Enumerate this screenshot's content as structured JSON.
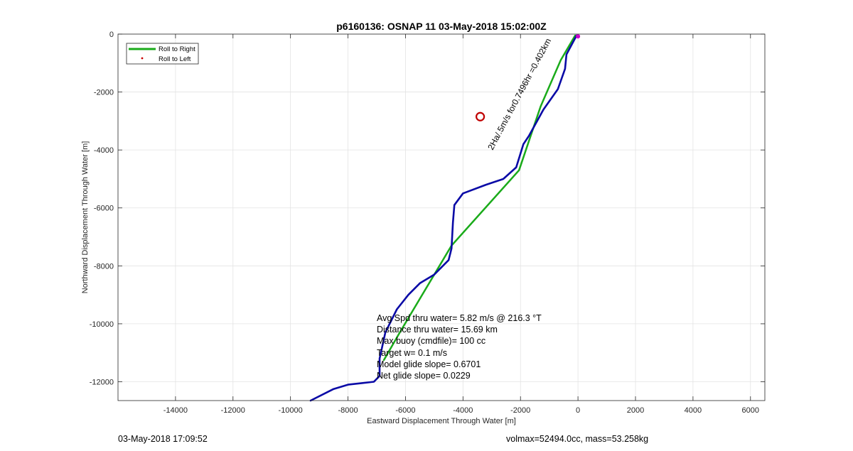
{
  "chart_data": {
    "type": "line",
    "title": "p6160136: OSNAP 11 03-May-2018 15:02:00Z",
    "xlabel": "Eastward Displacement Through Water [m]",
    "ylabel": "Northward Displacement Through Water [m]",
    "xlim": [
      -16000,
      6500
    ],
    "ylim": [
      -12650,
      0
    ],
    "xticks": [
      -14000,
      -12000,
      -10000,
      -8000,
      -6000,
      -4000,
      -2000,
      0,
      2000,
      4000,
      6000
    ],
    "yticks": [
      0,
      -2000,
      -4000,
      -6000,
      -8000,
      -10000,
      -12000
    ],
    "grid": true,
    "legend_position": "top-left",
    "series": [
      {
        "name": "Roll to Right",
        "color": "#1aab1a",
        "points": [
          [
            -100,
            -50
          ],
          [
            -600,
            -900
          ],
          [
            -1300,
            -2500
          ],
          [
            -2050,
            -4700
          ],
          [
            -4400,
            -7300
          ],
          [
            -6200,
            -10300
          ],
          [
            -6750,
            -11250
          ]
        ]
      },
      {
        "name": "Roll to Left",
        "color": "#cc0000",
        "points": []
      },
      {
        "name": "",
        "color": "#0a0aa6",
        "points": [
          [
            -50,
            -50
          ],
          [
            -400,
            -700
          ],
          [
            -450,
            -1200
          ],
          [
            -700,
            -1900
          ],
          [
            -1200,
            -2600
          ],
          [
            -1700,
            -3500
          ],
          [
            -1900,
            -3800
          ],
          [
            -2150,
            -4600
          ],
          [
            -2600,
            -5000
          ],
          [
            -3200,
            -5200
          ],
          [
            -4000,
            -5500
          ],
          [
            -4300,
            -5900
          ],
          [
            -4350,
            -6500
          ],
          [
            -4400,
            -7400
          ],
          [
            -4500,
            -7800
          ],
          [
            -5000,
            -8300
          ],
          [
            -5500,
            -8600
          ],
          [
            -5900,
            -9000
          ],
          [
            -6300,
            -9500
          ],
          [
            -6700,
            -10300
          ],
          [
            -6900,
            -11200
          ],
          [
            -6900,
            -11800
          ],
          [
            -7100,
            -12000
          ],
          [
            -8000,
            -12100
          ],
          [
            -8500,
            -12250
          ],
          [
            -9300,
            -12650
          ]
        ]
      }
    ],
    "marker": {
      "x": -3400,
      "y": -2850,
      "color": "#c00000"
    },
    "end_marker": {
      "x": 0,
      "y": -80,
      "color": "#cc00cc"
    },
    "annotation": "2Ha/.5m/s for0.7496hr =0.402km",
    "stats": [
      "Avg Spd thru water=  5.82 m/s @ 216.3 °T",
      "Distance thru water= 15.69 km",
      "Max buoy (cmdfile)= 100 cc",
      "Target w= 0.1 m/s",
      "Model glide slope= 0.6701",
      "Net glide slope= 0.0229"
    ]
  },
  "footer": {
    "left": "03-May-2018 17:09:52",
    "right": "volmax=52494.0cc, mass=53.258kg"
  }
}
